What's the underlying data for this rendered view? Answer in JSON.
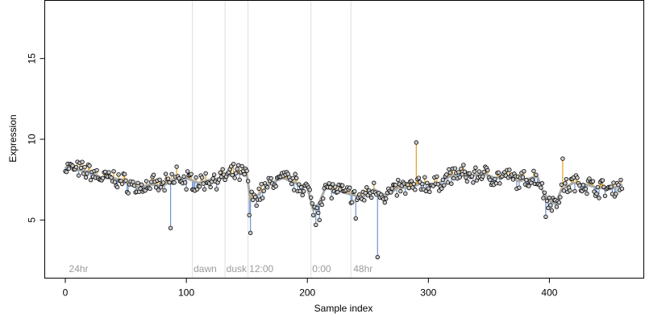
{
  "chart_data": {
    "type": "scatter",
    "xlabel": "Sample index",
    "ylabel": "Expression",
    "xlim": [
      -17,
      478
    ],
    "ylim": [
      1.4,
      18.6
    ],
    "xticks": [
      0,
      100,
      200,
      300,
      400
    ],
    "yticks": [
      5,
      10,
      15
    ],
    "colors": {
      "above": "#E0A020",
      "below": "#6F95D0",
      "fit": "#AAAAAA",
      "guide": "#DDDDDD",
      "point_fill": "#C8C8C8"
    },
    "annotations": [
      {
        "text": "24hr",
        "x": 3
      },
      {
        "text": "dawn",
        "x": 106
      },
      {
        "text": "dusk",
        "x": 133
      },
      {
        "text": "12:00",
        "x": 152
      },
      {
        "text": "0:00",
        "x": 204
      },
      {
        "text": "48hr",
        "x": 238
      }
    ],
    "guides": [
      105,
      132,
      151,
      203,
      236
    ],
    "outliers": [
      {
        "x": 87,
        "y": 4.5
      },
      {
        "x": 153,
        "y": 4.2
      },
      {
        "x": 152,
        "y": 5.3
      },
      {
        "x": 207,
        "y": 4.7
      },
      {
        "x": 210,
        "y": 5.0
      },
      {
        "x": 240,
        "y": 5.1
      },
      {
        "x": 258,
        "y": 2.7
      },
      {
        "x": 290,
        "y": 9.8
      },
      {
        "x": 411,
        "y": 8.8
      },
      {
        "x": 397,
        "y": 5.2
      },
      {
        "x": 92,
        "y": 8.3
      },
      {
        "x": 100,
        "y": 6.9
      }
    ],
    "baseline": [
      [
        0,
        8.3
      ],
      [
        10,
        8.1
      ],
      [
        20,
        8.0
      ],
      [
        30,
        7.6
      ],
      [
        40,
        7.6
      ],
      [
        50,
        7.3
      ],
      [
        60,
        7.0
      ],
      [
        70,
        7.2
      ],
      [
        80,
        7.1
      ],
      [
        90,
        7.5
      ],
      [
        100,
        7.6
      ],
      [
        110,
        7.3
      ],
      [
        120,
        7.5
      ],
      [
        130,
        7.6
      ],
      [
        140,
        7.9
      ],
      [
        150,
        7.8
      ],
      [
        153,
        6.2
      ],
      [
        160,
        6.6
      ],
      [
        170,
        7.3
      ],
      [
        180,
        7.6
      ],
      [
        190,
        7.3
      ],
      [
        200,
        7.0
      ],
      [
        205,
        5.6
      ],
      [
        210,
        6.1
      ],
      [
        215,
        7.0
      ],
      [
        225,
        6.8
      ],
      [
        235,
        6.6
      ],
      [
        245,
        6.4
      ],
      [
        255,
        6.9
      ],
      [
        265,
        6.5
      ],
      [
        275,
        7.0
      ],
      [
        285,
        7.0
      ],
      [
        295,
        7.3
      ],
      [
        305,
        7.1
      ],
      [
        315,
        7.6
      ],
      [
        325,
        7.9
      ],
      [
        335,
        7.7
      ],
      [
        345,
        7.9
      ],
      [
        355,
        7.6
      ],
      [
        365,
        7.7
      ],
      [
        375,
        7.4
      ],
      [
        385,
        7.6
      ],
      [
        390,
        7.7
      ],
      [
        395,
        6.7
      ],
      [
        400,
        6.2
      ],
      [
        405,
        6.0
      ],
      [
        410,
        6.9
      ],
      [
        420,
        7.3
      ],
      [
        430,
        7.2
      ],
      [
        440,
        7.0
      ],
      [
        450,
        6.9
      ],
      [
        460,
        7.2
      ]
    ]
  }
}
